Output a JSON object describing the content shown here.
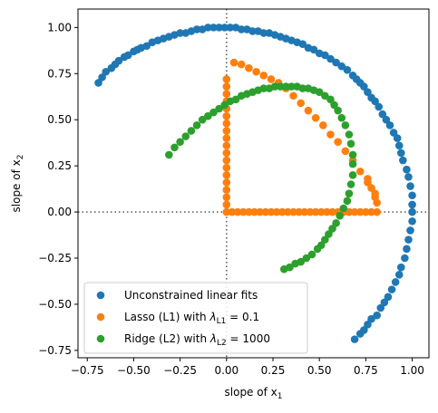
{
  "chart_data": {
    "type": "scatter",
    "title": "",
    "xlabel": "slope of x",
    "xlabel_sub": "1",
    "ylabel": "slope of x",
    "ylabel_sub": "2",
    "xlim": [
      -0.8,
      1.09
    ],
    "ylim": [
      -0.79,
      1.1
    ],
    "xticks": [
      -0.75,
      -0.5,
      -0.25,
      0.0,
      0.25,
      0.5,
      0.75,
      1.0
    ],
    "xtick_labels": [
      "−0.75",
      "−0.50",
      "−0.25",
      "0.00",
      "0.25",
      "0.50",
      "0.75",
      "1.00"
    ],
    "yticks": [
      -0.75,
      -0.5,
      -0.25,
      0.0,
      0.25,
      0.5,
      0.75,
      1.0
    ],
    "ytick_labels": [
      "−0.75",
      "−0.50",
      "−0.25",
      "0.00",
      "0.25",
      "0.50",
      "0.75",
      "1.00"
    ],
    "grid": false,
    "reference_lines": [
      "x = 0 (dotted)",
      "y = 0 (dotted)"
    ],
    "legend_position": "lower-left",
    "series": [
      {
        "name": "Unconstrained linear fits",
        "label_parts": [
          "Unconstrained linear fits"
        ],
        "color": "#1f77b4",
        "x": [
          -0.69,
          -0.67,
          -0.65,
          -0.62,
          -0.6,
          -0.58,
          -0.55,
          -0.53,
          -0.5,
          -0.48,
          -0.46,
          -0.43,
          -0.4,
          -0.37,
          -0.34,
          -0.31,
          -0.28,
          -0.25,
          -0.22,
          -0.19,
          -0.16,
          -0.13,
          -0.1,
          -0.07,
          -0.04,
          -0.01,
          0.02,
          0.05,
          0.08,
          0.11,
          0.14,
          0.17,
          0.2,
          0.23,
          0.26,
          0.29,
          0.32,
          0.35,
          0.38,
          0.41,
          0.44,
          0.47,
          0.5,
          0.53,
          0.56,
          0.59,
          0.62,
          0.65,
          0.68,
          0.7,
          0.72,
          0.74,
          0.76,
          0.78,
          0.8,
          0.82,
          0.84,
          0.86,
          0.88,
          0.9,
          0.92,
          0.93,
          0.94,
          0.95,
          0.97,
          0.98,
          0.99,
          1.0,
          1.0,
          1.0,
          1.0,
          0.99,
          0.98,
          0.97,
          0.96,
          0.94,
          0.93,
          0.91,
          0.89,
          0.87,
          0.85,
          0.83,
          0.81,
          0.78,
          0.76,
          0.74,
          0.72,
          0.69
        ],
        "y": [
          0.7,
          0.73,
          0.76,
          0.78,
          0.8,
          0.82,
          0.84,
          0.85,
          0.87,
          0.88,
          0.89,
          0.9,
          0.92,
          0.93,
          0.94,
          0.95,
          0.96,
          0.97,
          0.97,
          0.98,
          0.99,
          0.99,
          1.0,
          1.0,
          1.0,
          1.0,
          1.0,
          1.0,
          0.99,
          0.99,
          0.98,
          0.98,
          0.97,
          0.97,
          0.96,
          0.95,
          0.94,
          0.93,
          0.92,
          0.91,
          0.89,
          0.88,
          0.86,
          0.85,
          0.83,
          0.81,
          0.79,
          0.77,
          0.74,
          0.72,
          0.7,
          0.68,
          0.65,
          0.62,
          0.6,
          0.57,
          0.53,
          0.5,
          0.47,
          0.43,
          0.4,
          0.36,
          0.32,
          0.28,
          0.23,
          0.19,
          0.14,
          0.09,
          0.04,
          0.0,
          -0.05,
          -0.1,
          -0.15,
          -0.2,
          -0.25,
          -0.3,
          -0.34,
          -0.38,
          -0.42,
          -0.46,
          -0.49,
          -0.52,
          -0.56,
          -0.58,
          -0.61,
          -0.64,
          -0.66,
          -0.69
        ]
      },
      {
        "name": "Lasso (L1) with λ_L1 = 0.1",
        "label_parts": [
          "Lasso (L1) with ",
          "λ",
          "L1",
          " = 0.1"
        ],
        "color": "#ff7f0e",
        "x": [
          0.0,
          0.0,
          0.0,
          0.0,
          0.0,
          0.0,
          0.0,
          0.0,
          0.0,
          0.0,
          0.0,
          0.0,
          0.0,
          0.0,
          0.0,
          0.0,
          0.0,
          0.0,
          0.0,
          0.03,
          0.06,
          0.09,
          0.12,
          0.15,
          0.18,
          0.21,
          0.24,
          0.27,
          0.3,
          0.33,
          0.36,
          0.39,
          0.42,
          0.45,
          0.48,
          0.51,
          0.54,
          0.57,
          0.6,
          0.63,
          0.66,
          0.69,
          0.72,
          0.75,
          0.78,
          0.81,
          0.04,
          0.08,
          0.12,
          0.16,
          0.2,
          0.24,
          0.28,
          0.32,
          0.36,
          0.4,
          0.44,
          0.48,
          0.52,
          0.56,
          0.6,
          0.64,
          0.68,
          0.72,
          0.76,
          0.8,
          0.81,
          0.8,
          0.78,
          0.76
        ],
        "y": [
          0.0,
          0.04,
          0.08,
          0.12,
          0.16,
          0.2,
          0.24,
          0.28,
          0.32,
          0.36,
          0.4,
          0.44,
          0.48,
          0.52,
          0.56,
          0.6,
          0.64,
          0.68,
          0.72,
          0.0,
          0.0,
          0.0,
          0.0,
          0.0,
          0.0,
          0.0,
          0.0,
          0.0,
          0.0,
          0.0,
          0.0,
          0.0,
          0.0,
          0.0,
          0.0,
          0.0,
          0.0,
          0.0,
          0.0,
          0.0,
          0.0,
          0.0,
          0.0,
          0.0,
          0.0,
          0.0,
          0.81,
          0.8,
          0.78,
          0.76,
          0.74,
          0.72,
          0.7,
          0.67,
          0.63,
          0.59,
          0.55,
          0.51,
          0.47,
          0.42,
          0.38,
          0.33,
          0.28,
          0.22,
          0.16,
          0.1,
          0.05,
          0.08,
          0.13,
          0.18
        ]
      },
      {
        "name": "Ridge (L2) with λ_L2 = 1000",
        "label_parts": [
          "Ridge (L2) with ",
          "λ",
          "L2",
          " = 1000"
        ],
        "color": "#2ca02c",
        "x": [
          -0.31,
          -0.28,
          -0.25,
          -0.22,
          -0.19,
          -0.16,
          -0.13,
          -0.1,
          -0.07,
          -0.04,
          -0.01,
          0.02,
          0.05,
          0.08,
          0.11,
          0.14,
          0.17,
          0.2,
          0.23,
          0.26,
          0.29,
          0.32,
          0.35,
          0.38,
          0.41,
          0.44,
          0.47,
          0.5,
          0.53,
          0.56,
          0.58,
          0.6,
          0.62,
          0.64,
          0.66,
          0.67,
          0.68,
          0.68,
          0.68,
          0.67,
          0.66,
          0.65,
          0.63,
          0.61,
          0.59,
          0.57,
          0.55,
          0.53,
          0.51,
          0.49,
          0.46,
          0.43,
          0.4,
          0.37,
          0.34,
          0.31
        ],
        "y": [
          0.31,
          0.35,
          0.38,
          0.41,
          0.44,
          0.47,
          0.5,
          0.52,
          0.54,
          0.56,
          0.58,
          0.6,
          0.61,
          0.63,
          0.64,
          0.65,
          0.66,
          0.67,
          0.67,
          0.68,
          0.68,
          0.68,
          0.68,
          0.68,
          0.67,
          0.67,
          0.66,
          0.65,
          0.63,
          0.61,
          0.58,
          0.55,
          0.51,
          0.47,
          0.42,
          0.37,
          0.31,
          0.26,
          0.2,
          0.15,
          0.1,
          0.06,
          0.02,
          -0.02,
          -0.06,
          -0.09,
          -0.12,
          -0.15,
          -0.18,
          -0.2,
          -0.23,
          -0.25,
          -0.27,
          -0.28,
          -0.3,
          -0.31
        ]
      }
    ]
  }
}
